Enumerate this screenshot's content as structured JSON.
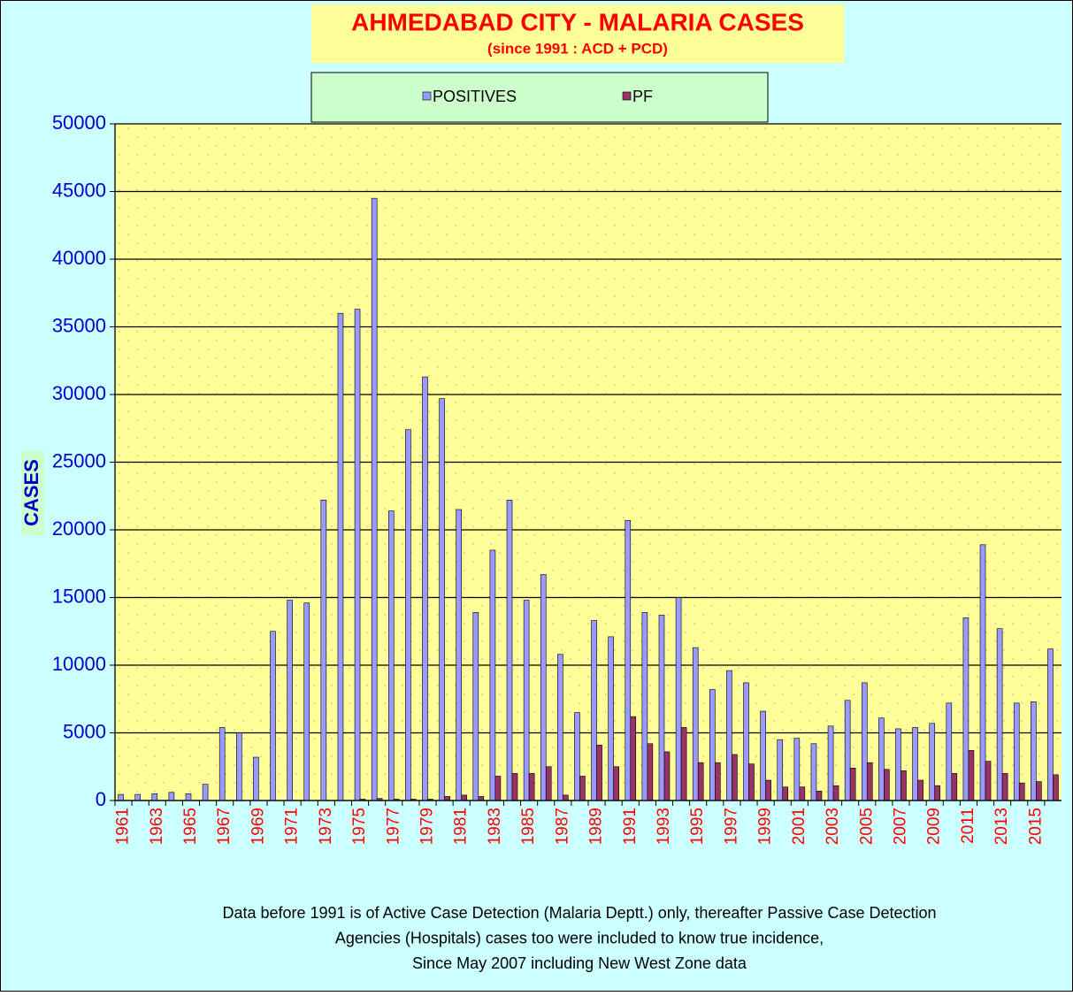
{
  "chart_data": {
    "type": "bar",
    "title": "AHMEDABAD CITY - MALARIA CASES",
    "subtitle": "(since 1991 :  ACD + PCD)",
    "y_label": "CASES",
    "categories": [
      "1961",
      null,
      "1963",
      null,
      "1965",
      null,
      "1967",
      null,
      "1969",
      null,
      "1971",
      null,
      "1973",
      null,
      "1975",
      null,
      "1977",
      null,
      "1979",
      null,
      "1981",
      null,
      "1983",
      null,
      "1985",
      null,
      "1987",
      null,
      "1989",
      null,
      "1991",
      null,
      "1993",
      null,
      "1995",
      null,
      "1997",
      null,
      "1999",
      null,
      "2001",
      null,
      "2003",
      null,
      "2005",
      null,
      "2007",
      null,
      "2009",
      null,
      "2011",
      null,
      "2013",
      null,
      "2015",
      null
    ],
    "series": [
      {
        "name": "POSITIVES",
        "color": "#9999ff",
        "values": [
          450,
          450,
          500,
          600,
          500,
          1200,
          5400,
          5000,
          3200,
          12500,
          14800,
          14600,
          22200,
          36000,
          36300,
          44500,
          21400,
          27400,
          31300,
          29700,
          21500,
          13900,
          18500,
          22200,
          14800,
          16700,
          10800,
          6500,
          13300,
          12100,
          20700,
          13900,
          13700,
          15000,
          11300,
          8200,
          9600,
          8700,
          6600,
          4500,
          4600,
          4200,
          5500,
          7400,
          8700,
          6100,
          5300,
          5400,
          5700,
          7200,
          13500,
          18900,
          12700,
          7200,
          7300,
          11200
        ]
      },
      {
        "name": "PF",
        "color": "#993366",
        "values": [
          0,
          0,
          0,
          0,
          0,
          0,
          0,
          0,
          0,
          0,
          0,
          0,
          0,
          0,
          100,
          150,
          100,
          100,
          100,
          300,
          400,
          300,
          1800,
          2000,
          2000,
          2500,
          400,
          1800,
          4100,
          2500,
          6200,
          4200,
          3600,
          5400,
          2800,
          2800,
          3400,
          2700,
          1500,
          1000,
          1000,
          700,
          1100,
          2400,
          2800,
          2300,
          2200,
          1500,
          1100,
          2000,
          3700,
          2900,
          2000,
          1300,
          1400,
          1900
        ]
      }
    ],
    "ylim": [
      0,
      50000
    ],
    "yticks": [
      0,
      5000,
      10000,
      15000,
      20000,
      25000,
      30000,
      35000,
      40000,
      45000,
      50000
    ],
    "grid": true,
    "legend": "top",
    "annotations": [
      "Data before 1991 is of Active Case Detection (Malaria Deptt.) only,  thereafter Passive Case Detection",
      "Agencies (Hospitals) cases too were included to know true incidence,",
      "Since May 2007 including New West Zone data"
    ]
  }
}
